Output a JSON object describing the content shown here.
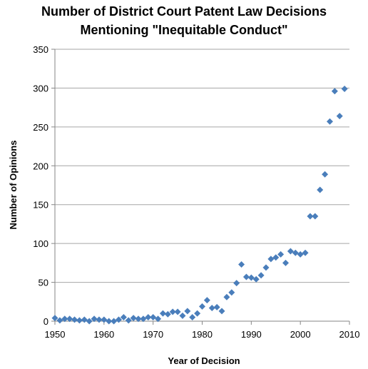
{
  "chart_data": {
    "type": "scatter",
    "title_lines": [
      "Number of District Court Patent Law Decisions",
      "Mentioning \"Inequitable Conduct\""
    ],
    "xlabel": "Year of Decision",
    "ylabel": "Number of Opinions",
    "xlim": [
      1950,
      2010
    ],
    "ylim": [
      0,
      350
    ],
    "x_ticks": [
      1950,
      1960,
      1970,
      1980,
      1990,
      2000,
      2010
    ],
    "y_ticks": [
      0,
      50,
      100,
      150,
      200,
      250,
      300,
      350
    ],
    "grid": "horizontal",
    "legend": "none",
    "marker": "diamond",
    "marker_color": "#4a7ebb",
    "points": [
      {
        "x": 1950,
        "y": 4
      },
      {
        "x": 1951,
        "y": 1
      },
      {
        "x": 1952,
        "y": 3
      },
      {
        "x": 1953,
        "y": 3
      },
      {
        "x": 1954,
        "y": 2
      },
      {
        "x": 1955,
        "y": 1
      },
      {
        "x": 1956,
        "y": 2
      },
      {
        "x": 1957,
        "y": 0
      },
      {
        "x": 1958,
        "y": 3
      },
      {
        "x": 1959,
        "y": 2
      },
      {
        "x": 1960,
        "y": 2
      },
      {
        "x": 1961,
        "y": 0
      },
      {
        "x": 1962,
        "y": 0
      },
      {
        "x": 1963,
        "y": 2
      },
      {
        "x": 1964,
        "y": 5
      },
      {
        "x": 1965,
        "y": 1
      },
      {
        "x": 1966,
        "y": 4
      },
      {
        "x": 1967,
        "y": 3
      },
      {
        "x": 1968,
        "y": 3
      },
      {
        "x": 1969,
        "y": 5
      },
      {
        "x": 1970,
        "y": 5
      },
      {
        "x": 1971,
        "y": 3
      },
      {
        "x": 1972,
        "y": 10
      },
      {
        "x": 1973,
        "y": 9
      },
      {
        "x": 1974,
        "y": 12
      },
      {
        "x": 1975,
        "y": 12
      },
      {
        "x": 1976,
        "y": 7
      },
      {
        "x": 1977,
        "y": 13
      },
      {
        "x": 1978,
        "y": 5
      },
      {
        "x": 1979,
        "y": 10
      },
      {
        "x": 1980,
        "y": 19
      },
      {
        "x": 1981,
        "y": 27
      },
      {
        "x": 1982,
        "y": 17
      },
      {
        "x": 1983,
        "y": 18
      },
      {
        "x": 1984,
        "y": 13
      },
      {
        "x": 1985,
        "y": 31
      },
      {
        "x": 1986,
        "y": 37
      },
      {
        "x": 1987,
        "y": 49
      },
      {
        "x": 1988,
        "y": 73
      },
      {
        "x": 1989,
        "y": 57
      },
      {
        "x": 1990,
        "y": 56
      },
      {
        "x": 1991,
        "y": 54
      },
      {
        "x": 1992,
        "y": 59
      },
      {
        "x": 1993,
        "y": 69
      },
      {
        "x": 1994,
        "y": 80
      },
      {
        "x": 1995,
        "y": 82
      },
      {
        "x": 1996,
        "y": 86
      },
      {
        "x": 1997,
        "y": 75
      },
      {
        "x": 1998,
        "y": 90
      },
      {
        "x": 1999,
        "y": 88
      },
      {
        "x": 2000,
        "y": 86
      },
      {
        "x": 2001,
        "y": 88
      },
      {
        "x": 2002,
        "y": 135
      },
      {
        "x": 2003,
        "y": 135
      },
      {
        "x": 2004,
        "y": 169
      },
      {
        "x": 2005,
        "y": 189
      },
      {
        "x": 2006,
        "y": 257
      },
      {
        "x": 2007,
        "y": 296
      },
      {
        "x": 2008,
        "y": 264
      },
      {
        "x": 2009,
        "y": 299
      }
    ]
  }
}
